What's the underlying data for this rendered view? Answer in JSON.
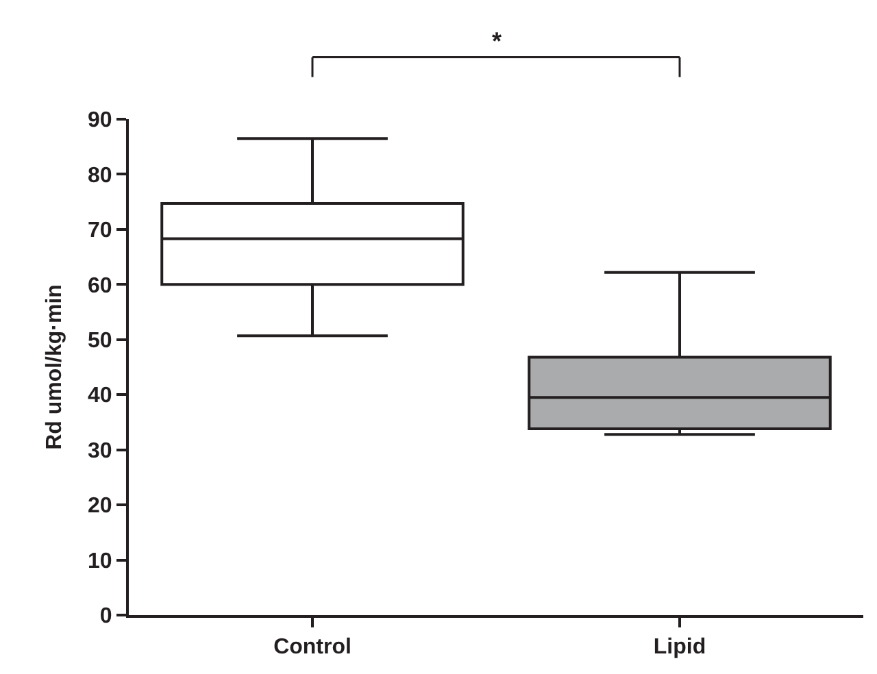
{
  "chart_data": {
    "type": "box",
    "ylabel": "Rd umol/kg·min",
    "categories": [
      "Control",
      "Lipid"
    ],
    "boxes": [
      {
        "low": 50.7,
        "q1": 60,
        "median": 68.3,
        "q3": 74.7,
        "high": 86.5
      },
      {
        "low": 32.8,
        "q1": 33.8,
        "median": 39.5,
        "q3": 46.8,
        "high": 62.2
      }
    ],
    "colors": [
      "#ffffff",
      "#aaabad"
    ],
    "ylim": [
      0,
      90
    ],
    "yticks": [
      0,
      10,
      20,
      30,
      40,
      50,
      60,
      70,
      80,
      90
    ],
    "annotations": [
      "*"
    ]
  }
}
